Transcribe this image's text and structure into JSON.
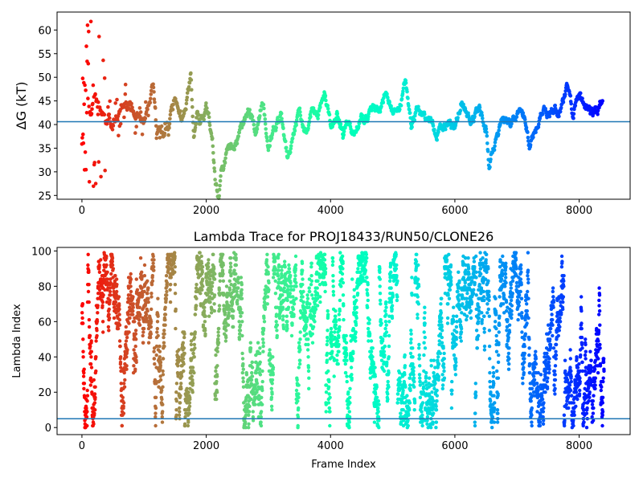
{
  "chart_data": [
    {
      "type": "scatter",
      "title": "",
      "xlabel": "",
      "ylabel": "ΔG (kT)",
      "xlim": [
        -400,
        8820
      ],
      "ylim": [
        24.2,
        63.8
      ],
      "xticks": [
        0,
        2000,
        4000,
        6000,
        8000
      ],
      "yticks": [
        25,
        30,
        35,
        40,
        45,
        50,
        55,
        60
      ],
      "hline": 40.6,
      "hline_color": "#1f77b4",
      "colormap": "rainbow (reversed over frame index: red at start, violet at end)",
      "frame_range": [
        0,
        8400
      ],
      "grid": false,
      "series": [
        {
          "keypoints_x": [
            0,
            50,
            100,
            150,
            200,
            300,
            400,
            500,
            600,
            700,
            800,
            900,
            1000,
            1100,
            1150,
            1200,
            1300,
            1400,
            1500,
            1600,
            1700,
            1750,
            1800,
            1850,
            1900,
            2000,
            2100,
            2150,
            2200,
            2250,
            2300,
            2400,
            2500,
            2600,
            2700,
            2800,
            2900,
            3000,
            3100,
            3200,
            3300,
            3400,
            3500,
            3600,
            3700,
            3800,
            3900,
            4000,
            4100,
            4200,
            4300,
            4400,
            4500,
            4600,
            4700,
            4800,
            4900,
            5000,
            5100,
            5200,
            5300,
            5400,
            5500,
            5600,
            5700,
            5800,
            5900,
            6000,
            6100,
            6200,
            6300,
            6400,
            6500,
            6550,
            6600,
            6700,
            6800,
            6900,
            7000,
            7100,
            7200,
            7300,
            7400,
            7500,
            7600,
            7700,
            7800,
            7900,
            8000,
            8100,
            8200,
            8300,
            8380
          ],
          "keypoints_y": [
            45,
            48,
            44,
            42,
            45,
            43,
            41,
            40,
            42,
            44,
            43,
            42,
            41,
            46,
            49,
            39,
            38,
            40,
            45,
            40,
            46,
            50,
            38,
            42,
            40,
            43,
            38,
            28,
            24,
            31,
            33,
            36,
            37,
            40,
            43,
            38,
            45,
            36,
            40,
            42,
            33,
            38,
            43,
            39,
            43,
            41,
            47,
            40,
            42,
            38,
            42,
            37,
            42,
            40,
            43,
            43,
            48,
            42,
            43,
            49,
            40,
            43,
            42,
            40,
            38,
            40,
            40,
            40,
            46,
            42,
            42,
            42,
            40,
            31,
            34,
            38,
            40,
            41,
            42,
            42,
            36,
            38,
            43,
            43,
            44,
            43,
            47,
            42,
            46,
            44,
            42,
            43,
            45
          ],
          "noise_amplitude": 1.4,
          "early_frames_spread": [
            26,
            62
          ]
        }
      ]
    },
    {
      "type": "scatter",
      "title": "Lambda Trace for PROJ18433/RUN50/CLONE26",
      "xlabel": "Frame Index",
      "ylabel": "Lambda Index",
      "xlim": [
        -400,
        8820
      ],
      "ylim": [
        -4,
        102
      ],
      "xticks": [
        0,
        2000,
        4000,
        6000,
        8000
      ],
      "yticks": [
        0,
        20,
        40,
        60,
        80,
        100
      ],
      "hline": 5,
      "hline_color": "#1f77b4",
      "colormap": "rainbow (reversed over frame index: red at start, violet at end)",
      "frame_range": [
        0,
        8400
      ],
      "grid": false,
      "series": [
        {
          "value_range": [
            0,
            99
          ],
          "description_of_distribution": "random walk across all lambda indices 0–99, densely covering the full range"
        }
      ]
    }
  ]
}
